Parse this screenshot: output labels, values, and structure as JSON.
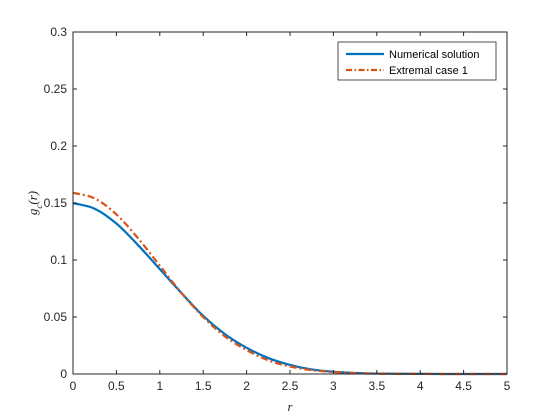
{
  "chart_data": {
    "type": "line",
    "title": "",
    "xlabel": "r",
    "ylabel": "g_c(r)",
    "ylabel_display": {
      "base": "g",
      "sub": "c",
      "rest": "(r)"
    },
    "xlim": [
      0,
      5
    ],
    "ylim": [
      0,
      0.3
    ],
    "xticks": [
      0,
      0.5,
      1,
      1.5,
      2,
      2.5,
      3,
      3.5,
      4,
      4.5,
      5
    ],
    "xtick_labels": [
      "0",
      "0.5",
      "1",
      "1.5",
      "2",
      "2.5",
      "3",
      "3.5",
      "4",
      "4.5",
      "5"
    ],
    "yticks": [
      0,
      0.05,
      0.1,
      0.15,
      0.2,
      0.25,
      0.3
    ],
    "ytick_labels": [
      "0",
      "0.05",
      "0.1",
      "0.15",
      "0.2",
      "0.25",
      "0.3"
    ],
    "grid": false,
    "legend_position": "top-right",
    "series": [
      {
        "name": "Numerical solution",
        "color": "#0072BD",
        "style": "solid",
        "x": [
          0,
          0.25,
          0.5,
          0.75,
          1.0,
          1.25,
          1.5,
          1.75,
          2.0,
          2.25,
          2.5,
          2.75,
          3.0,
          3.25,
          3.5,
          4.0,
          4.5,
          5.0
        ],
        "y": [
          0.15,
          0.145,
          0.132,
          0.113,
          0.092,
          0.071,
          0.051,
          0.035,
          0.023,
          0.014,
          0.008,
          0.004,
          0.002,
          0.0009,
          0.0004,
          0.0001,
          0.0,
          0.0
        ]
      },
      {
        "name": "Extremal case 1",
        "color": "#D95319",
        "style": "dashdot",
        "x": [
          0,
          0.25,
          0.5,
          0.75,
          1.0,
          1.25,
          1.5,
          1.75,
          2.0,
          2.25,
          2.5,
          2.75,
          3.0,
          3.25,
          3.5,
          4.0,
          4.5,
          5.0
        ],
        "y": [
          0.159,
          0.154,
          0.14,
          0.119,
          0.095,
          0.071,
          0.05,
          0.033,
          0.021,
          0.012,
          0.0066,
          0.0034,
          0.0017,
          0.0008,
          0.0003,
          0.0001,
          0.0,
          0.0
        ]
      }
    ]
  }
}
